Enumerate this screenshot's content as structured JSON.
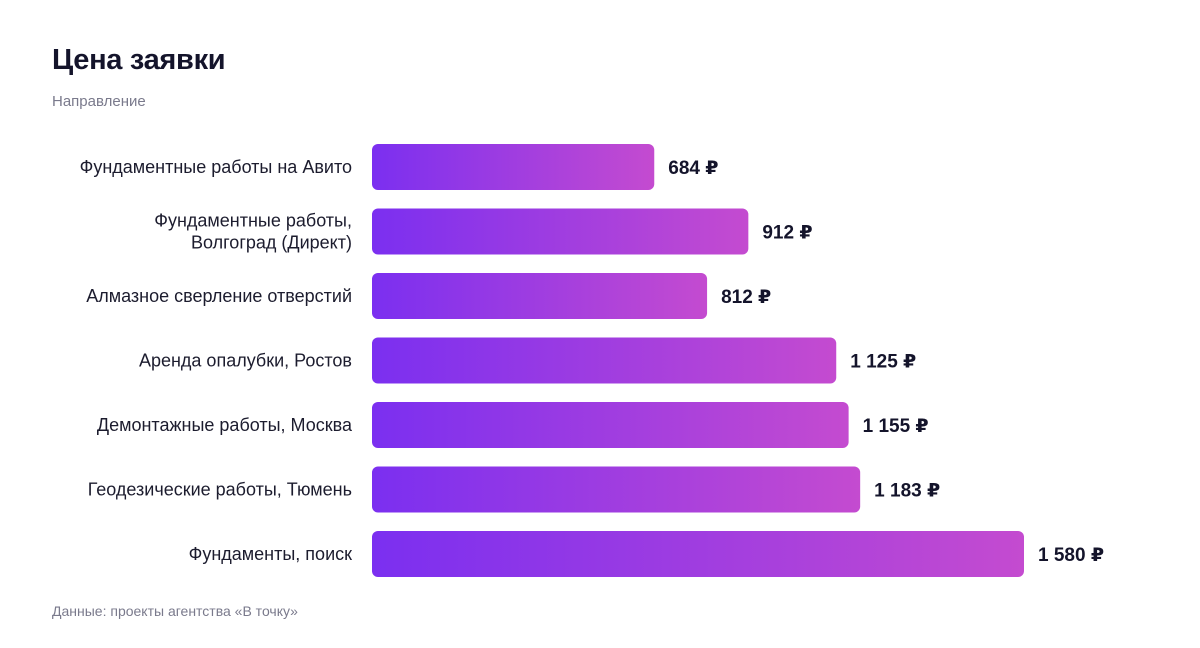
{
  "header": {
    "title": "Цена заявки",
    "subtitle": "Направление"
  },
  "footer": {
    "source": "Данные: проекты агентства «В точку»"
  },
  "colors": {
    "bar_start": "#7b2ff0",
    "bar_end": "#c44bd0",
    "text": "#14142b",
    "muted": "#7a7a8c"
  },
  "chart_data": {
    "type": "bar",
    "orientation": "horizontal",
    "title": "Цена заявки",
    "subtitle": "Направление",
    "unit": "₽",
    "categories": [
      [
        "Фундаментные работы на Авито"
      ],
      [
        "Фундаментные работы,",
        "Волгоград (Директ)"
      ],
      [
        "Алмазное сверление отверстий"
      ],
      [
        "Аренда опалубки, Ростов"
      ],
      [
        "Демонтажные работы, Москва"
      ],
      [
        "Геодезические работы, Тюмень"
      ],
      [
        "Фундаменты, поиск"
      ]
    ],
    "values": [
      684,
      912,
      812,
      1125,
      1155,
      1183,
      1580
    ],
    "value_labels": [
      "684 ₽",
      "912 ₽",
      "812 ₽",
      "1 125 ₽",
      "1 155 ₽",
      "1 183 ₽",
      "1 580 ₽"
    ],
    "grid": false,
    "legend": "none"
  }
}
